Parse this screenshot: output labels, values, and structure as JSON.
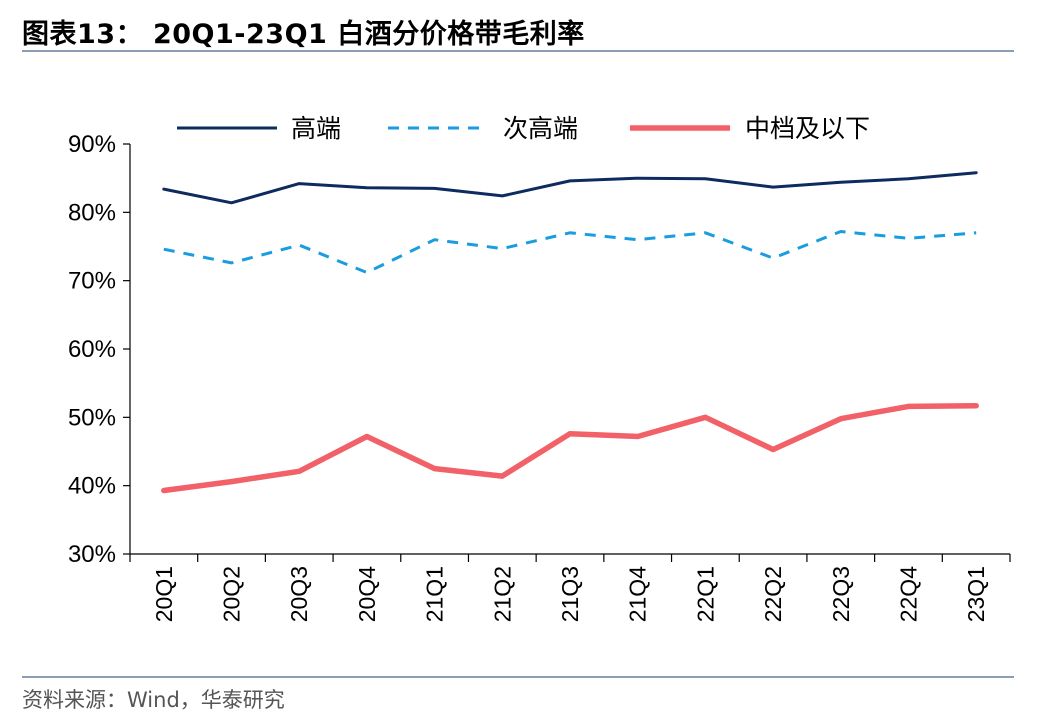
{
  "header": {
    "title": "图表13：  20Q1-23Q1 白酒分价格带毛利率"
  },
  "footer": {
    "source": "资料来源：Wind，华泰研究"
  },
  "colors": {
    "high_end": "#0d2b5e",
    "sub_high_end": "#1a9de0",
    "mid_low": "#f16167",
    "axis": "#000000",
    "rule": "#8c9db5"
  },
  "chart_data": {
    "type": "line",
    "title": "20Q1-23Q1 白酒分价格带毛利率",
    "xlabel": "",
    "ylabel": "",
    "ylim": [
      30,
      90
    ],
    "yticks": [
      "30%",
      "40%",
      "50%",
      "60%",
      "70%",
      "80%",
      "90%"
    ],
    "ytick_values": [
      30,
      40,
      50,
      60,
      70,
      80,
      90
    ],
    "categories": [
      "20Q1",
      "20Q2",
      "20Q3",
      "20Q4",
      "21Q1",
      "21Q2",
      "21Q3",
      "21Q4",
      "22Q1",
      "22Q2",
      "22Q3",
      "22Q4",
      "23Q1"
    ],
    "legend_position": "top",
    "series": [
      {
        "name": "高端",
        "style": "solid",
        "values": [
          83.4,
          81.4,
          84.2,
          83.6,
          83.5,
          82.4,
          84.6,
          85.0,
          84.9,
          83.7,
          84.4,
          84.9,
          85.8
        ]
      },
      {
        "name": "次高端",
        "style": "dashed",
        "values": [
          74.6,
          72.6,
          75.2,
          71.2,
          76.0,
          74.7,
          77.0,
          76.0,
          77.0,
          73.3,
          77.2,
          76.2,
          77.0
        ]
      },
      {
        "name": "中档及以下",
        "style": "solid-thick",
        "values": [
          39.3,
          40.6,
          42.1,
          47.2,
          42.5,
          41.4,
          47.6,
          47.2,
          50.0,
          45.3,
          49.8,
          51.6,
          51.7
        ]
      }
    ]
  }
}
